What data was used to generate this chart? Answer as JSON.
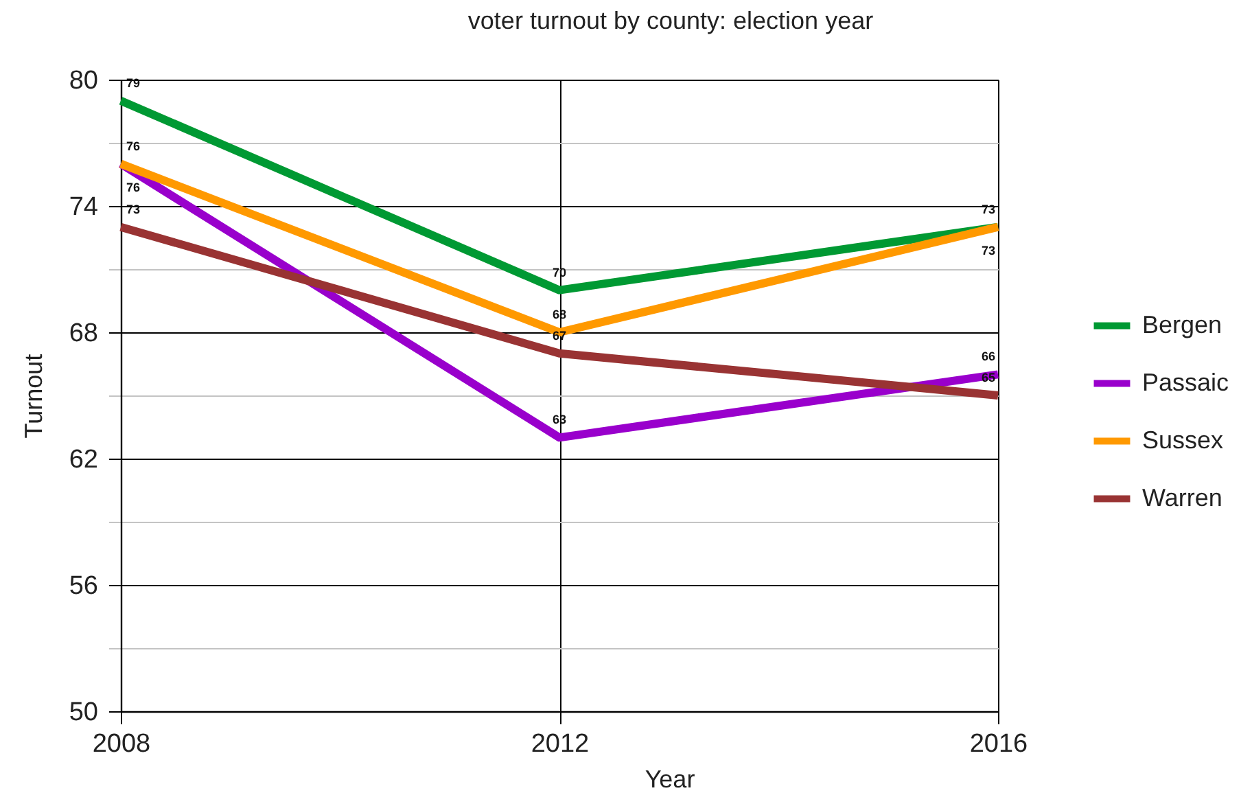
{
  "chart_data": {
    "type": "line",
    "title": "voter turnout by county: election year",
    "xlabel": "Year",
    "ylabel": "Turnout",
    "x": [
      2008,
      2012,
      2016
    ],
    "series": [
      {
        "name": "Bergen",
        "color": "#009933",
        "values": [
          79,
          70,
          73
        ]
      },
      {
        "name": "Passaic",
        "color": "#9900cc",
        "values": [
          76,
          63,
          66
        ]
      },
      {
        "name": "Sussex",
        "color": "#ff9900",
        "values": [
          76,
          68,
          73
        ]
      },
      {
        "name": "Warren",
        "color": "#993333",
        "values": [
          73,
          67,
          65
        ]
      }
    ],
    "xlim": [
      2008,
      2016
    ],
    "xticks": [
      2008,
      2012,
      2016
    ],
    "ylim": [
      50,
      80
    ],
    "yticks": [
      50,
      {
        "value": 53,
        "label": null
      },
      56,
      {
        "value": 59,
        "label": null
      },
      62,
      {
        "value": 65,
        "label": null
      },
      68,
      {
        "value": 71,
        "label": null
      },
      74,
      {
        "value": 77,
        "label": null
      },
      80
    ],
    "grid": true,
    "legend": "right",
    "line_style": "solid",
    "data_labels": true
  }
}
